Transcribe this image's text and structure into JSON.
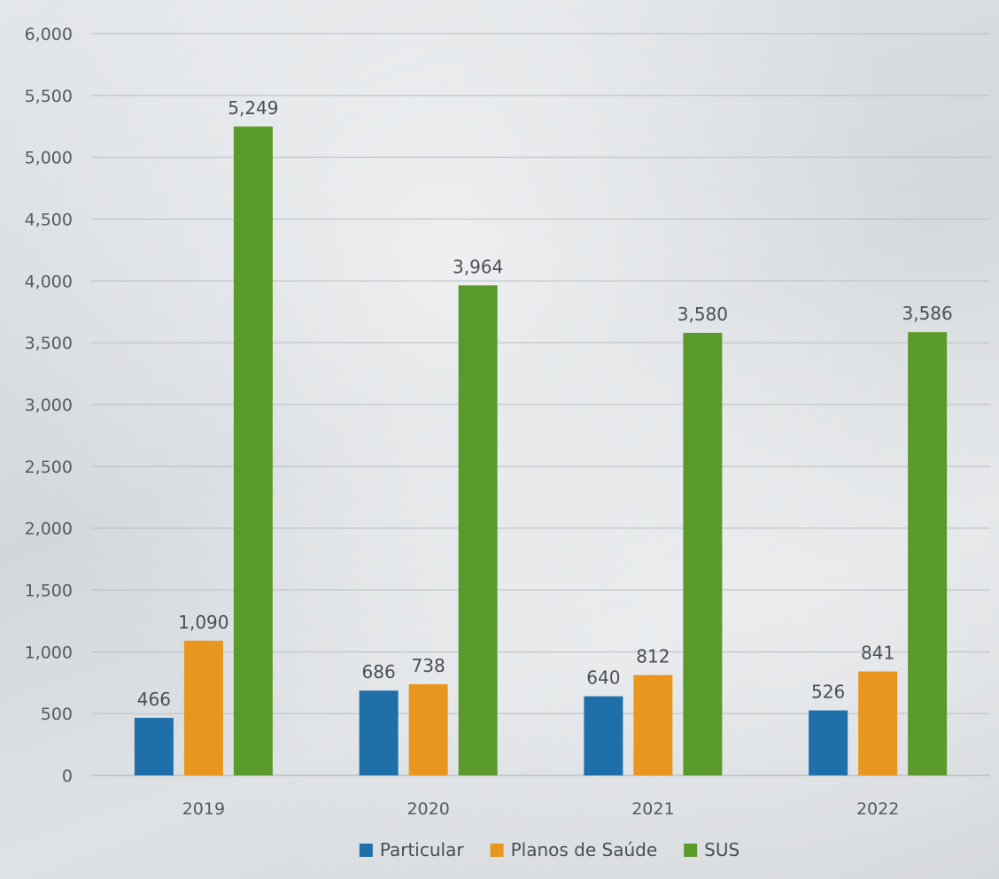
{
  "chart_data": {
    "type": "bar",
    "categories": [
      "2019",
      "2020",
      "2021",
      "2022"
    ],
    "series": [
      {
        "name": "Particular",
        "values": [
          466,
          686,
          640,
          526
        ],
        "color": "#1f6faa"
      },
      {
        "name": "Planos de Saúde",
        "values": [
          1090,
          738,
          812,
          841
        ],
        "color": "#e8961e"
      },
      {
        "name": "SUS",
        "values": [
          5249,
          3964,
          3580,
          3586
        ],
        "color": "#5a9a2b"
      }
    ],
    "data_labels": [
      [
        "466",
        "686",
        "640",
        "526"
      ],
      [
        "1,090",
        "738",
        "812",
        "841"
      ],
      [
        "5,249",
        "3,964",
        "3,580",
        "3,586"
      ]
    ],
    "y_ticks": [
      0,
      500,
      1000,
      1500,
      2000,
      2500,
      3000,
      3500,
      4000,
      4500,
      5000,
      5500,
      6000
    ],
    "y_tick_labels": [
      "0",
      "500",
      "1,000",
      "1,500",
      "2,000",
      "2,500",
      "3,000",
      "3,500",
      "4,000",
      "4,500",
      "5,000",
      "5,500",
      "6,000"
    ],
    "ylim": [
      0,
      6000
    ],
    "title": "",
    "xlabel": "",
    "ylabel": "",
    "grid": true,
    "legend_position": "bottom"
  }
}
